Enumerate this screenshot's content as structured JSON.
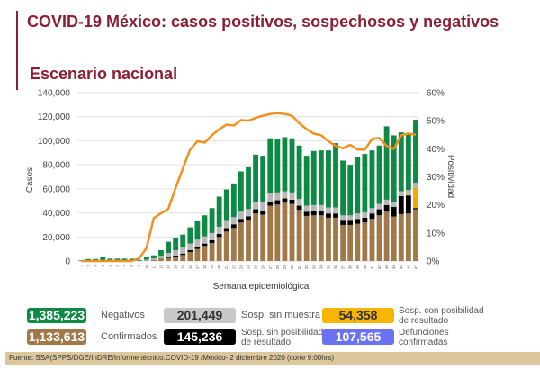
{
  "header": {
    "title": "COVID-19 México: casos positivos, sospechosos y negativos",
    "subtitle": "Escenario nacional"
  },
  "chart_data": {
    "type": "bar",
    "stacked": true,
    "xlabel": "Semana epidemiológica",
    "ylabel": "Casos",
    "y2label": "Positividad",
    "ylim": [
      0,
      140000
    ],
    "y2lim": [
      0,
      60
    ],
    "yticks": [
      "0",
      "20,000",
      "40,000",
      "60,000",
      "80,000",
      "100,000",
      "120,000",
      "140,000"
    ],
    "y2ticks": [
      "0%",
      "10%",
      "20%",
      "30%",
      "40%",
      "50%",
      "60%"
    ],
    "grid": true,
    "categories": [
      "1",
      "2",
      "3",
      "4",
      "5",
      "6",
      "7",
      "8",
      "9",
      "10",
      "11",
      "12",
      "13",
      "14",
      "15",
      "16",
      "17",
      "18",
      "19",
      "20",
      "21",
      "22",
      "23",
      "24",
      "25",
      "26",
      "27",
      "28",
      "29",
      "30",
      "31",
      "32",
      "33",
      "34",
      "35",
      "36",
      "37",
      "38",
      "39",
      "40",
      "41",
      "42",
      "43",
      "44",
      "45",
      "46",
      "47"
    ],
    "series": [
      {
        "name": "Confirmados",
        "color": "#a0784a",
        "values": [
          0,
          0,
          0,
          0,
          0,
          0,
          0,
          0,
          0,
          300,
          800,
          1500,
          2500,
          3500,
          5000,
          7500,
          10000,
          12500,
          15000,
          20000,
          24500,
          27500,
          32000,
          34000,
          39500,
          38500,
          46000,
          47000,
          48500,
          47500,
          42500,
          37500,
          38000,
          38000,
          36000,
          36000,
          30000,
          30000,
          31000,
          32000,
          35000,
          38000,
          41000,
          37000,
          39000,
          39500,
          43000
        ]
      },
      {
        "name": "Sosp. sin posibilidad de resultado",
        "color": "#000000",
        "values": [
          0,
          0,
          0,
          0,
          0,
          0,
          0,
          0,
          0,
          0,
          100,
          300,
          700,
          1000,
          1200,
          1500,
          1800,
          2000,
          2300,
          2500,
          2800,
          3000,
          3000,
          3200,
          3500,
          3500,
          3500,
          3500,
          3500,
          3500,
          3500,
          3500,
          3500,
          3500,
          3500,
          3500,
          3500,
          3500,
          4000,
          4000,
          4500,
          5000,
          5500,
          8000,
          15000,
          15000,
          1000
        ]
      },
      {
        "name": "Sosp. con posibilidad de resultado",
        "color": "#f2a900",
        "values": [
          0,
          0,
          0,
          0,
          0,
          0,
          0,
          0,
          0,
          0,
          0,
          0,
          0,
          0,
          0,
          0,
          0,
          0,
          0,
          0,
          0,
          0,
          0,
          0,
          0,
          0,
          0,
          0,
          0,
          0,
          0,
          0,
          0,
          0,
          0,
          0,
          0,
          0,
          0,
          0,
          0,
          0,
          0,
          0,
          0,
          500,
          17000
        ]
      },
      {
        "name": "Sosp. sin muestra",
        "color": "#b8b8b8",
        "values": [
          100,
          300,
          300,
          500,
          400,
          400,
          400,
          400,
          200,
          800,
          1300,
          2500,
          3500,
          4500,
          5000,
          5500,
          6000,
          6000,
          6000,
          6000,
          6000,
          6000,
          6000,
          6000,
          6000,
          7000,
          7000,
          6500,
          6000,
          6000,
          5500,
          5000,
          5000,
          5000,
          5000,
          5000,
          4500,
          4500,
          4500,
          4500,
          4500,
          4500,
          4500,
          4000,
          4000,
          4000,
          4000
        ]
      },
      {
        "name": "Negativos",
        "color": "#0e8a45",
        "values": [
          400,
          1400,
          1400,
          2500,
          1600,
          1600,
          1600,
          1600,
          800,
          1900,
          2500,
          4700,
          9300,
          10500,
          10800,
          13500,
          15200,
          17500,
          20700,
          25000,
          26200,
          28000,
          33500,
          34800,
          39500,
          38500,
          45500,
          44000,
          45000,
          45000,
          44500,
          41500,
          45000,
          45500,
          47500,
          53500,
          45500,
          42000,
          47000,
          48500,
          48000,
          48500,
          61000,
          55500,
          49000,
          47500,
          52500
        ]
      }
    ],
    "line": {
      "name": "Positividad",
      "color": "#f0901e",
      "axis": "right",
      "values": [
        0,
        0,
        0,
        0,
        0,
        0,
        0,
        0,
        1,
        4.6,
        15.3,
        17,
        18.6,
        26,
        33,
        39.7,
        42.7,
        42.2,
        44.8,
        47,
        48.6,
        48.3,
        50.2,
        50,
        51,
        51.8,
        52.4,
        52.7,
        52.4,
        51.8,
        49.1,
        47,
        45.4,
        44.8,
        42.7,
        41,
        40.2,
        41.4,
        39.7,
        39.7,
        43.5,
        43.8,
        41,
        40,
        44.8,
        45.4,
        45
      ]
    }
  },
  "summary": {
    "negativos": {
      "value": "1,385,223",
      "label": "Negativos",
      "color": "#0e8a45"
    },
    "confirmados": {
      "value": "1,133,613",
      "label": "Confirmados",
      "color": "#a0784a"
    },
    "sin_muestra": {
      "value": "201,449",
      "label": "Sosp. sin muestra",
      "color": "#c8c8c8"
    },
    "sin_posibilidad": {
      "value": "145,236",
      "label_1": "Sosp. sin posibilidad",
      "label_2": "de resultado",
      "color": "#000000"
    },
    "con_posibilidad": {
      "value": "54,358",
      "label_1": "Sosp. con posibilidad",
      "label_2": "de resultado",
      "color": "#f7b500"
    },
    "defunciones": {
      "value": "107,565",
      "label_1": "Defunciones",
      "label_2": "confirmadas",
      "color": "#6b72f0"
    }
  },
  "footer": {
    "source": "Fuente: SSA(SPPS/DGE/InDRE/Informe técnico.COVID-19 /México- 2 diciembre 2020 (corte 9:00hrs)"
  }
}
